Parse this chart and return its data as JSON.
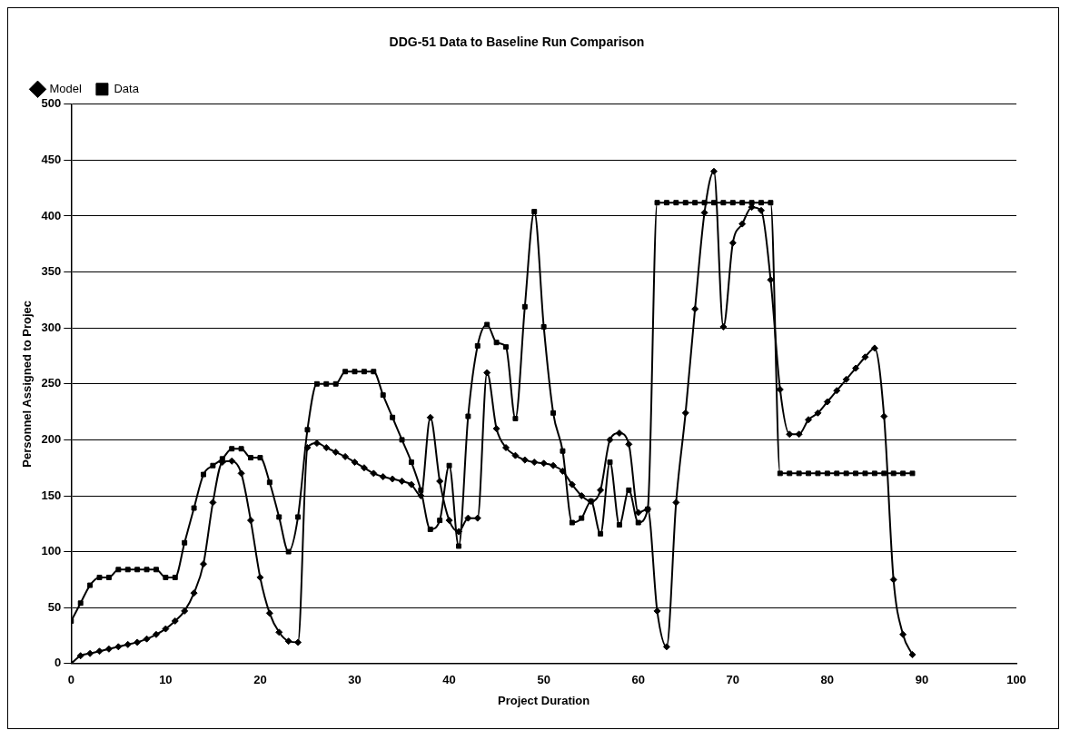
{
  "chart_data": {
    "type": "line",
    "title": "DDG-51 Data to Baseline Run Comparison",
    "xlabel": "Project Duration",
    "ylabel": "Personnel Assigned to Projec",
    "x": [
      0,
      1,
      2,
      3,
      4,
      5,
      6,
      7,
      8,
      9,
      10,
      11,
      12,
      13,
      14,
      15,
      16,
      17,
      18,
      19,
      20,
      21,
      22,
      23,
      24,
      25,
      26,
      27,
      28,
      29,
      30,
      31,
      32,
      33,
      34,
      35,
      36,
      37,
      38,
      39,
      40,
      41,
      42,
      43,
      44,
      45,
      46,
      47,
      48,
      49,
      50,
      51,
      52,
      53,
      54,
      55,
      56,
      57,
      58,
      59,
      60,
      61,
      62,
      63,
      64,
      65,
      66,
      67,
      68,
      69,
      70,
      71,
      72,
      73,
      74,
      75,
      76,
      77,
      78,
      79,
      80,
      81,
      82,
      83,
      84,
      85,
      86,
      87,
      88,
      89
    ],
    "series": [
      {
        "name": "Model",
        "color": "#000000",
        "marker": "diamond",
        "values": [
          0,
          7,
          9,
          11,
          13,
          15,
          17,
          19,
          22,
          26,
          31,
          38,
          47,
          63,
          89,
          144,
          180,
          181,
          170,
          128,
          77,
          45,
          28,
          20,
          19,
          193,
          197,
          193,
          189,
          185,
          180,
          175,
          170,
          167,
          165,
          163,
          160,
          150,
          220,
          163,
          128,
          118,
          130,
          130,
          260,
          210,
          193,
          186,
          182,
          180,
          179,
          177,
          172,
          160,
          150,
          145,
          155,
          200,
          206,
          196,
          135,
          138,
          47,
          15,
          144,
          224,
          317,
          403,
          440,
          301,
          376,
          393,
          408,
          405,
          343,
          245,
          205,
          205,
          218,
          224,
          234,
          244,
          254,
          264,
          274,
          282,
          221,
          75,
          26,
          8
        ]
      },
      {
        "name": "Data",
        "color": "#000000",
        "marker": "square",
        "values": [
          38,
          54,
          70,
          77,
          77,
          84,
          84,
          84,
          84,
          84,
          77,
          77,
          108,
          139,
          169,
          177,
          183,
          192,
          192,
          184,
          184,
          162,
          131,
          100,
          131,
          209,
          250,
          250,
          250,
          261,
          261,
          261,
          261,
          240,
          220,
          200,
          180,
          155,
          120,
          128,
          177,
          105,
          221,
          284,
          303,
          287,
          283,
          219,
          319,
          404,
          301,
          224,
          190,
          126,
          130,
          145,
          116,
          180,
          124,
          155,
          126,
          138,
          412,
          412,
          412,
          412,
          412,
          412,
          412,
          412,
          412,
          412,
          412,
          412,
          412,
          170,
          170,
          170,
          170,
          170,
          170,
          170,
          170,
          170,
          170,
          170,
          170,
          170,
          170,
          170
        ]
      }
    ],
    "xlim": [
      0,
      100
    ],
    "xticks": [
      0,
      10,
      20,
      30,
      40,
      50,
      60,
      70,
      80,
      90,
      100
    ],
    "ylim": [
      0,
      500
    ],
    "yticks": [
      0,
      50,
      100,
      150,
      200,
      250,
      300,
      350,
      400,
      450,
      500
    ],
    "grid": "y",
    "legend": "top left"
  }
}
